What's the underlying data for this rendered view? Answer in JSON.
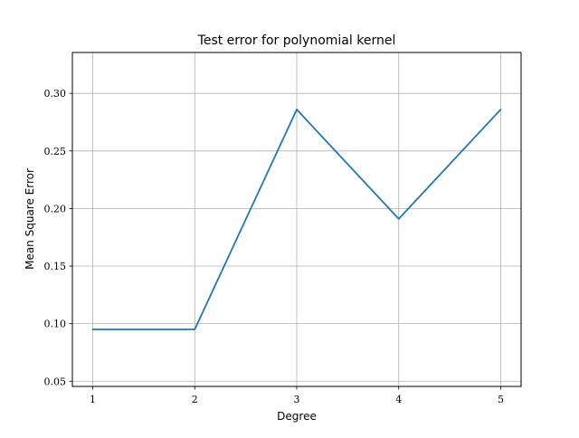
{
  "chart_data": {
    "type": "line",
    "title": "Test error for polynomial kernel",
    "xlabel": "Degree",
    "ylabel": "Mean Square Error",
    "x": [
      1,
      2,
      3,
      4,
      5
    ],
    "series": [
      {
        "values": [
          0.095,
          0.095,
          0.286,
          0.191,
          0.286
        ],
        "color": "#1f77b4"
      }
    ],
    "xticks": [
      "1",
      "2",
      "3",
      "4",
      "5"
    ],
    "yticks": [
      "0.05",
      "0.10",
      "0.15",
      "0.20",
      "0.25",
      "0.30"
    ],
    "xlim": [
      0.8,
      5.2
    ],
    "ylim": [
      0.0455,
      0.3355
    ],
    "grid": true,
    "grid_color": "#b0b0b0",
    "axis_color": "#000000"
  }
}
